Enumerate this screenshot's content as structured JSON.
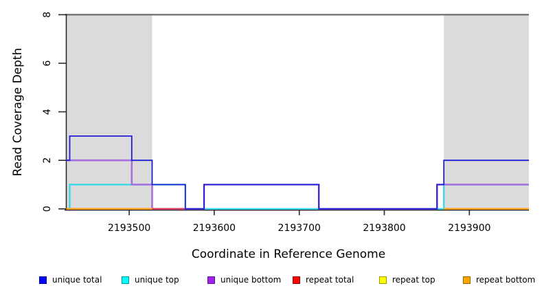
{
  "figure": {
    "xlabel": "Coordinate in Reference Genome",
    "ylabel": "Read Coverage Depth"
  },
  "chart_data": {
    "type": "step-line",
    "title": "",
    "xlabel": "Coordinate in Reference Genome",
    "ylabel": "Read Coverage Depth",
    "xlim": [
      2193426,
      2193970
    ],
    "ylim": [
      0,
      8
    ],
    "x_ticks": [
      2193500,
      2193600,
      2193700,
      2193800,
      2193900
    ],
    "y_ticks": [
      0,
      2,
      4,
      6,
      8
    ],
    "grid": false,
    "legend_position": "bottom",
    "background_color": "#FFFFFF",
    "repeat_region_fill": "#DBDBDB",
    "repeat_regions": [
      [
        2193426,
        2193527
      ],
      [
        2193870,
        2193970
      ]
    ],
    "boundary_line": {
      "y": 8,
      "color": "#6E6E6E"
    },
    "axis_color": "#2B2B2B",
    "draw_order": [
      "unique top",
      "unique bottom",
      "repeat total",
      "repeat top",
      "repeat bottom",
      "unique total"
    ],
    "series": [
      {
        "name": "unique total",
        "legend_color": "#0000FF",
        "line_color": "#1F1FD6",
        "swatch_border": "#000099",
        "line_width": 1.8,
        "segments": [
          [
            2193426,
            2193430,
            2
          ],
          [
            2193430,
            2193503,
            3
          ],
          [
            2193503,
            2193527,
            2
          ],
          [
            2193527,
            2193566,
            1
          ],
          [
            2193566,
            2193588,
            0
          ],
          [
            2193588,
            2193723,
            1
          ],
          [
            2193723,
            2193862,
            0
          ],
          [
            2193862,
            2193870,
            1
          ],
          [
            2193870,
            2193970,
            2
          ]
        ]
      },
      {
        "name": "unique top",
        "legend_color": "#00FFFF",
        "line_color": "#2FD8EA",
        "swatch_border": "#009999",
        "line_width": 2.2,
        "segments": [
          [
            2193426,
            2193430,
            0
          ],
          [
            2193430,
            2193566,
            1
          ],
          [
            2193566,
            2193870,
            0
          ],
          [
            2193870,
            2193970,
            1
          ]
        ]
      },
      {
        "name": "unique bottom",
        "legend_color": "#A020F0",
        "line_color": "#A76FDE",
        "swatch_border": "#5E1390",
        "line_width": 2.6,
        "segments": [
          [
            2193426,
            2193503,
            2
          ],
          [
            2193503,
            2193527,
            1
          ],
          [
            2193527,
            2193588,
            0
          ],
          [
            2193588,
            2193723,
            1
          ],
          [
            2193723,
            2193862,
            0
          ],
          [
            2193862,
            2193970,
            1
          ]
        ]
      },
      {
        "name": "repeat total",
        "legend_color": "#FF0000",
        "line_color": "#E23850",
        "swatch_border": "#990000",
        "line_width": 2.0,
        "segments": [
          [
            2193426,
            2193566,
            0
          ],
          [
            2193870,
            2193970,
            0
          ]
        ]
      },
      {
        "name": "repeat top",
        "legend_color": "#FFFF00",
        "line_color": "#FFE800",
        "swatch_border": "#999900",
        "line_width": 2.0,
        "segments": [
          [
            2193426,
            2193527,
            0
          ],
          [
            2193870,
            2193970,
            0
          ]
        ]
      },
      {
        "name": "repeat bottom",
        "legend_color": "#FFA500",
        "line_color": "#FF9D1A",
        "swatch_border": "#996300",
        "line_width": 2.2,
        "segments": [
          [
            2193426,
            2193527,
            0
          ],
          [
            2193870,
            2193970,
            0
          ]
        ]
      }
    ]
  }
}
